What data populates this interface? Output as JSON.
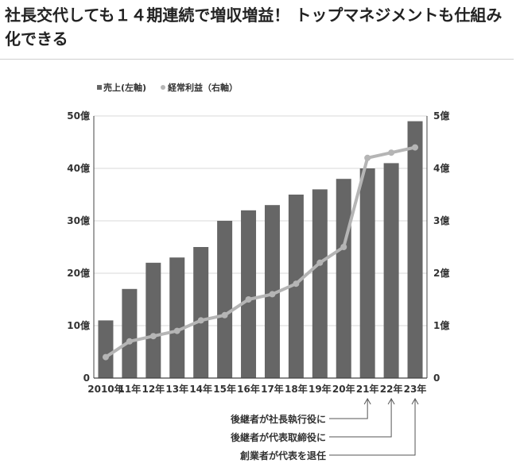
{
  "headline": "社長交代しても１４期連続で増収増益！ トップマネジメントも仕組み化できる",
  "chart_data": {
    "type": "bar+line",
    "categories": [
      "2010年",
      "11年",
      "12年",
      "13年",
      "14年",
      "15年",
      "16年",
      "17年",
      "18年",
      "19年",
      "20年",
      "21年",
      "22年",
      "23年"
    ],
    "series": [
      {
        "name": "売上(左軸)",
        "type": "bar",
        "axis": "left",
        "values": [
          11,
          17,
          22,
          23,
          25,
          30,
          32,
          33,
          35,
          36,
          38,
          40,
          41,
          49
        ],
        "color": "#666666"
      },
      {
        "name": "経常利益（右軸）",
        "type": "line",
        "axis": "right",
        "values": [
          0.4,
          0.7,
          0.8,
          0.9,
          1.1,
          1.2,
          1.5,
          1.6,
          1.8,
          2.2,
          2.5,
          4.2,
          4.3,
          4.4
        ],
        "color": "#b5b5b5"
      }
    ],
    "left_axis": {
      "ylim": [
        0,
        50
      ],
      "ticks": [
        "0",
        "10億",
        "20億",
        "30億",
        "40億",
        "50億"
      ]
    },
    "right_axis": {
      "ylim": [
        0,
        5
      ],
      "ticks": [
        "0",
        "1億",
        "2億",
        "3億",
        "4億",
        "5億"
      ]
    },
    "legend": {
      "placement": "top-left"
    },
    "annotations": [
      {
        "text": "後継者が社長執行役に",
        "category": "21年"
      },
      {
        "text": "後継者が代表取締役に",
        "category": "22年"
      },
      {
        "text": "創業者が代表を退任",
        "category": "23年"
      }
    ]
  }
}
